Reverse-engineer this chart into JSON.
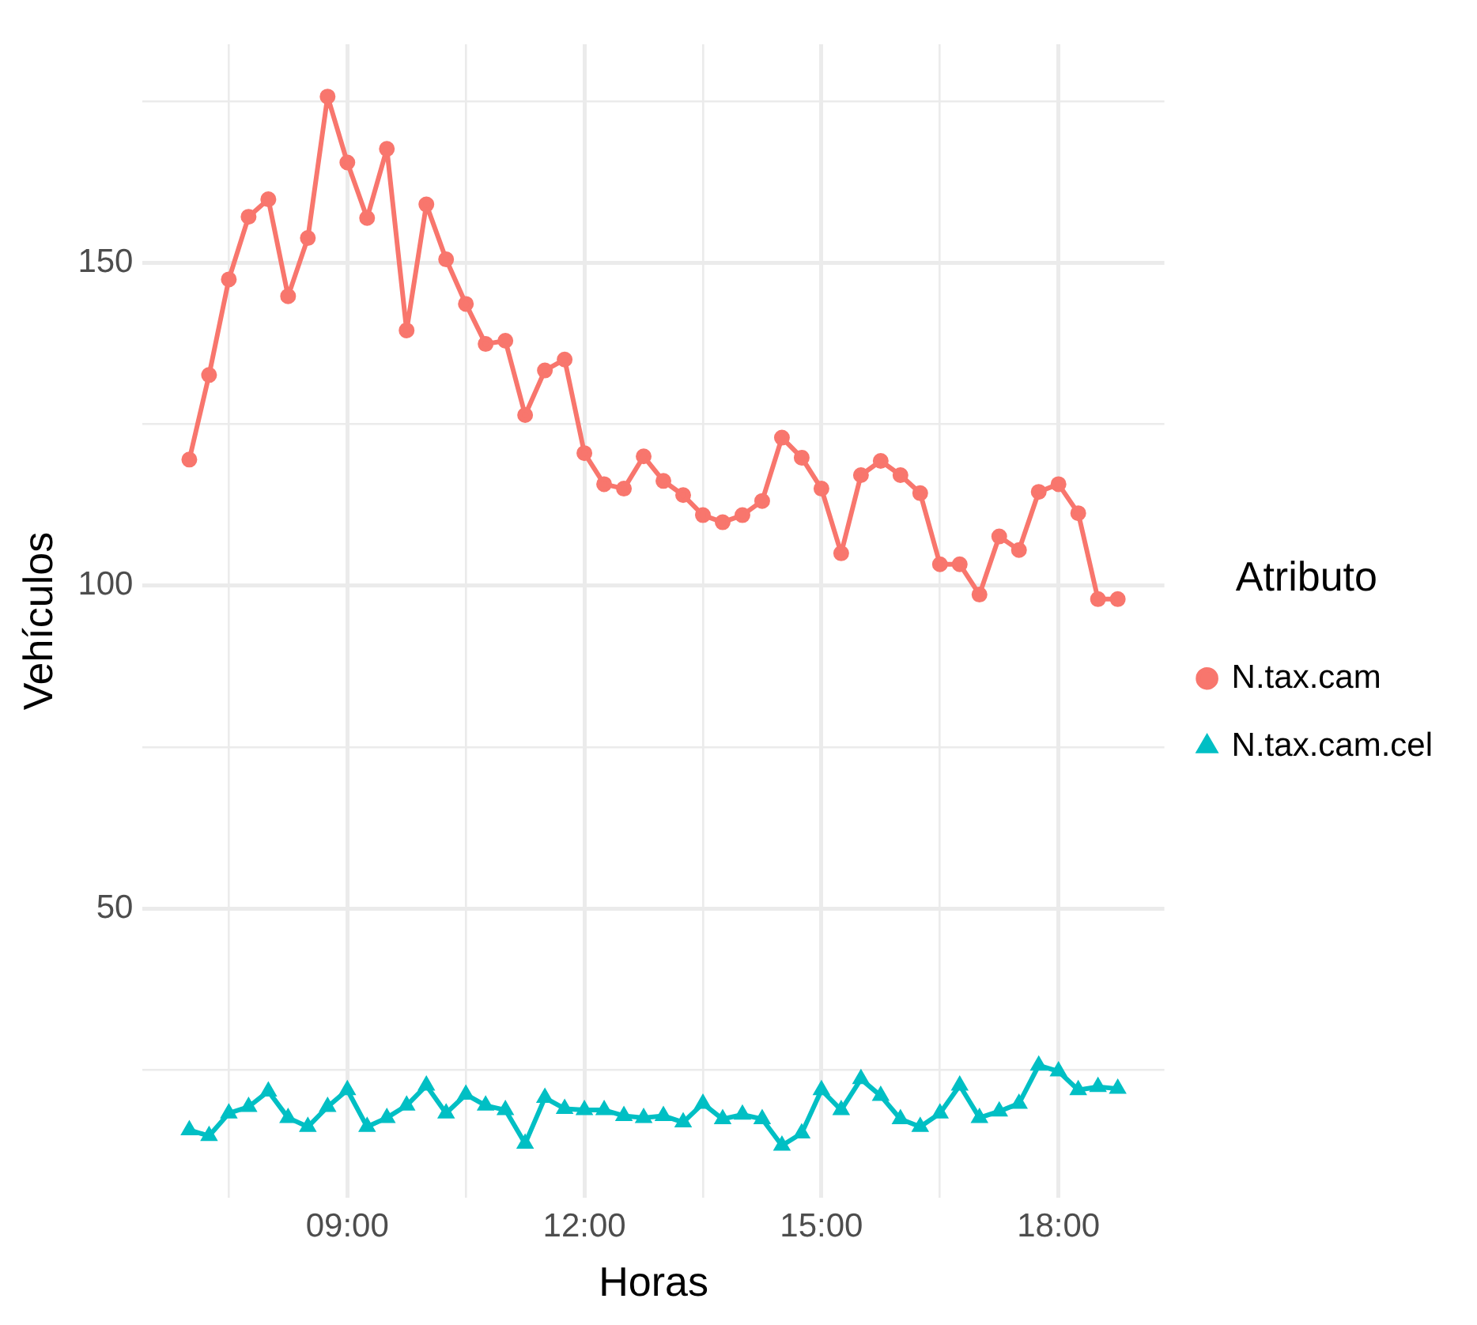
{
  "chart_data": {
    "type": "line",
    "xlabel": "Horas",
    "ylabel": "Vehículos",
    "legend_title": "Atributo",
    "legend": "right",
    "grid": true,
    "x": [
      7,
      7.25,
      7.5,
      7.75,
      8,
      8.25,
      8.5,
      8.75,
      9,
      9.25,
      9.5,
      9.75,
      10,
      10.25,
      10.5,
      10.75,
      11,
      11.25,
      11.5,
      11.75,
      12,
      12.25,
      12.5,
      12.75,
      13,
      13.25,
      13.5,
      13.75,
      14,
      14.25,
      14.5,
      14.75,
      15,
      15.25,
      15.5,
      15.75,
      16,
      16.25,
      16.5,
      16.75,
      17,
      17.25,
      17.5,
      17.75,
      18,
      18.25,
      18.5,
      18.75
    ],
    "xlim": [
      6.41,
      19.34
    ],
    "xticks": [
      {
        "value": 7.5,
        "label": null
      },
      {
        "value": 9,
        "label": "09:00"
      },
      {
        "value": 10.5,
        "label": null
      },
      {
        "value": 12,
        "label": "12:00"
      },
      {
        "value": 13.5,
        "label": null
      },
      {
        "value": 15,
        "label": "15:00"
      },
      {
        "value": 16.5,
        "label": null
      },
      {
        "value": 18,
        "label": "18:00"
      }
    ],
    "ylim": [
      5.2,
      183.8
    ],
    "yticks": [
      {
        "value": 25,
        "label": null
      },
      50,
      {
        "value": 75,
        "label": null
      },
      100,
      {
        "value": 125,
        "label": null
      },
      150,
      {
        "value": 175,
        "label": null
      }
    ],
    "series": [
      {
        "name": "N.tax.cam",
        "color": "#f8766d",
        "marker": "circle",
        "values": [
          119.5,
          132.6,
          147.4,
          157.1,
          159.8,
          144.8,
          153.8,
          175.7,
          165.5,
          156.9,
          167.6,
          139.5,
          159,
          150.5,
          143.6,
          137.4,
          137.9,
          126.4,
          133.3,
          135,
          120.5,
          115.7,
          115,
          120,
          116.2,
          114,
          110.9,
          109.8,
          110.9,
          113.1,
          122.9,
          119.8,
          115,
          105,
          117.1,
          119.3,
          117.1,
          114.3,
          103.3,
          103.3,
          98.6,
          107.6,
          105.5,
          114.5,
          115.7,
          111.2,
          97.9,
          97.9
        ]
      },
      {
        "name": "N.tax.cam.cel",
        "color": "#00bfc4",
        "marker": "triangle",
        "values": [
          15.7,
          14.8,
          18.3,
          19.3,
          21.7,
          17.6,
          16.2,
          19.3,
          21.9,
          16.2,
          17.6,
          19.5,
          22.6,
          18.3,
          21.2,
          19.5,
          18.8,
          13.6,
          20.7,
          19,
          18.8,
          18.8,
          17.9,
          17.6,
          17.9,
          16.9,
          19.8,
          17.4,
          18.1,
          17.4,
          13.3,
          15.2,
          21.9,
          18.8,
          23.6,
          21,
          17.4,
          16.2,
          18.3,
          22.6,
          17.6,
          18.6,
          19.8,
          25.7,
          24.8,
          21.9,
          22.4,
          22.1
        ]
      }
    ]
  }
}
